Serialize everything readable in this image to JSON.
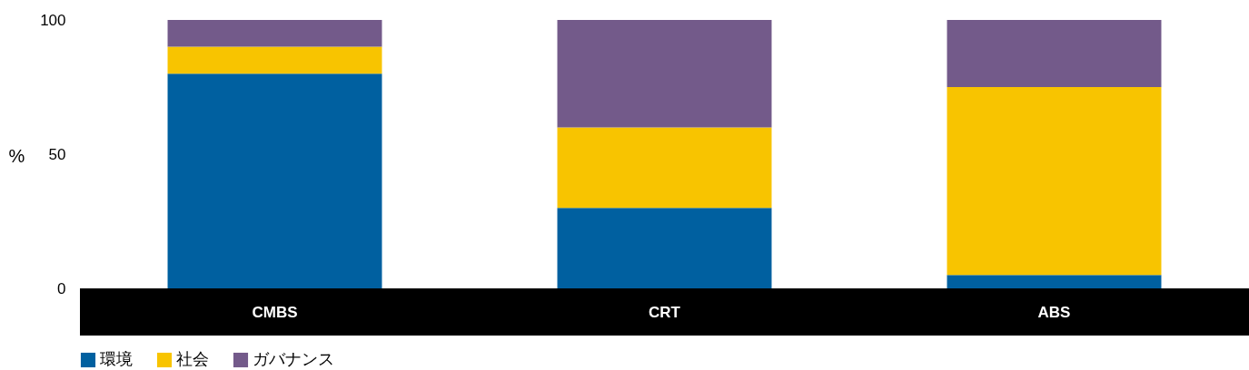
{
  "chart_data": {
    "type": "bar",
    "stacked": true,
    "ylabel": "%",
    "categories": [
      "CMBS",
      "CRT",
      "ABS"
    ],
    "series": [
      {
        "name": "環境",
        "color": "#0060a0",
        "values": [
          80,
          30,
          5
        ]
      },
      {
        "name": "社会",
        "color": "#f8c400",
        "values": [
          10,
          30,
          70
        ]
      },
      {
        "name": "ガバナンス",
        "color": "#735a8a",
        "values": [
          10,
          40,
          25
        ]
      }
    ],
    "ylim": [
      0,
      100
    ],
    "yticks": [
      0,
      50,
      100
    ],
    "legend": "bottom"
  }
}
